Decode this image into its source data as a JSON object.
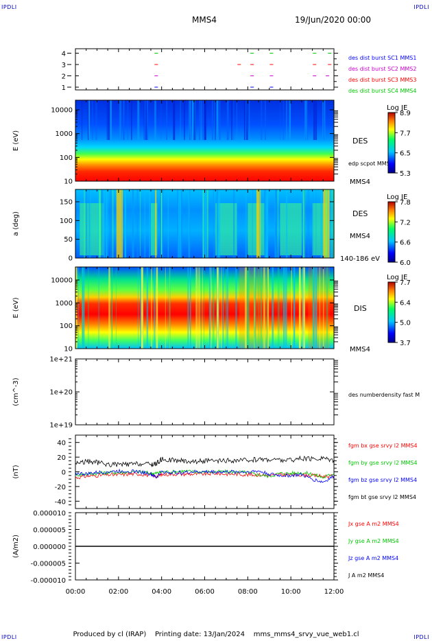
{
  "corners": {
    "top_left": "IPDLI",
    "top_right": "IPDLI",
    "bottom_left": "IPDLI",
    "bottom_right": "IPDLI"
  },
  "header": {
    "spacecraft": "MMS4",
    "datetime": "19/Jun/2020 00:00"
  },
  "footer": {
    "produced_by": "Produced by cl (IRAP)",
    "printing_date": "Printing date: 13/Jan/2024",
    "script": "mms_mms4_srvy_vue_web1.cl"
  },
  "colors": {
    "red": "#ff0000",
    "green": "#00c800",
    "blue": "#0000ff",
    "magenta": "#cc00cc",
    "black": "#000000"
  },
  "chart_data": [
    {
      "type": "scatter",
      "panel": "burst-availability",
      "y_ticks": [
        "1",
        "2",
        "3",
        "4"
      ],
      "legend": [
        {
          "name": "des dist burst SC1 MMS1",
          "color": "#0000ff"
        },
        {
          "name": "des dist burst SC2 MMS2",
          "color": "#cc00cc"
        },
        {
          "name": "des dist burst SC3 MMS3",
          "color": "#ff0000"
        },
        {
          "name": "des dist burst SC4 MMS4",
          "color": "#00c800"
        }
      ],
      "series": [
        {
          "name": "des dist burst SC1 MMS1",
          "y": 1,
          "x": [
            3.75,
            8.2,
            9.1
          ]
        },
        {
          "name": "des dist burst SC2 MMS2",
          "y": 2,
          "x": [
            3.75,
            8.2,
            9.1,
            11.1,
            11.7
          ]
        },
        {
          "name": "des dist burst SC3 MMS3",
          "y": 3,
          "x": [
            3.75,
            7.6,
            8.2,
            9.1,
            11.1,
            11.8
          ]
        },
        {
          "name": "des dist burst SC4 MMS4",
          "y": 4,
          "x": [
            3.75,
            8.2,
            9.1,
            11.1,
            11.8
          ]
        }
      ]
    },
    {
      "type": "heatmap",
      "panel": "des-energy",
      "ylabel": "E (eV)",
      "y_ticks": [
        "10",
        "100",
        "1000",
        "10000"
      ],
      "label": "DES",
      "label2": "edp scpot MMS4",
      "label3": "MMS4",
      "colorbar": {
        "title": "Log JE",
        "ticks": [
          "8.9",
          "7.7",
          "6.5",
          "5.3"
        ]
      }
    },
    {
      "type": "heatmap",
      "panel": "des-pitch-angle",
      "ylabel": "a (deg)",
      "y_ticks": [
        "0",
        "50",
        "100",
        "150"
      ],
      "label": "DES",
      "label2": "MMS4",
      "label3": "140-186 eV",
      "colorbar": {
        "title": "Log JE",
        "ticks": [
          "7.8",
          "7.2",
          "6.6",
          "6.0"
        ]
      }
    },
    {
      "type": "heatmap",
      "panel": "dis-energy",
      "ylabel": "E (eV)",
      "y_ticks": [
        "10",
        "100",
        "1000",
        "10000"
      ],
      "label": "DIS",
      "label2": "MMS4",
      "colorbar": {
        "title": "Log JE",
        "ticks": [
          "7.7",
          "6.4",
          "5.0",
          "3.7"
        ]
      }
    },
    {
      "type": "line",
      "panel": "density",
      "ylabel": "(cm^-3)",
      "y_ticks": [
        "1e+19",
        "1e+20",
        "1e+21"
      ],
      "legend": [
        {
          "name": "des numberdensity fast M",
          "color": "#000000"
        }
      ]
    },
    {
      "type": "line",
      "panel": "magnetic-field",
      "ylabel": "(nT)",
      "ylim": [
        -50,
        50
      ],
      "y_ticks": [
        "-40",
        "-20",
        "0",
        "20",
        "40"
      ],
      "legend": [
        {
          "name": "fgm bx gse srvy l2 MMS4",
          "color": "#ff0000"
        },
        {
          "name": "fgm by gse srvy l2 MMS4",
          "color": "#00c800"
        },
        {
          "name": "fgm bz gse srvy l2 MMS4",
          "color": "#0000ff"
        },
        {
          "name": "fgm bt gse srvy l2 MMS4",
          "color": "#000000"
        }
      ],
      "x": [
        0,
        0.5,
        1,
        1.5,
        2,
        2.5,
        3,
        3.5,
        3.75,
        4,
        4.5,
        5,
        5.5,
        6,
        6.5,
        7,
        7.5,
        8,
        8.5,
        9,
        9.5,
        10,
        10.5,
        11,
        11.5,
        12
      ],
      "series": [
        {
          "name": "fgm bx gse srvy l2 MMS4",
          "values": [
            -8,
            -6,
            -5,
            -4,
            -4,
            -3,
            -3,
            -5,
            -6,
            -4,
            -3,
            -3,
            -3,
            -3,
            -2,
            -3,
            -3,
            -4,
            -4,
            -5,
            -4,
            -4,
            -4,
            -5,
            -6,
            -6
          ]
        },
        {
          "name": "fgm by gse srvy l2 MMS4",
          "values": [
            -4,
            -3,
            -2,
            -1,
            -1,
            0,
            0,
            -2,
            -2,
            0,
            0,
            1,
            0,
            0,
            0,
            0,
            0,
            -1,
            -4,
            -6,
            -2,
            -2,
            -1,
            -3,
            -8,
            -2
          ]
        },
        {
          "name": "fgm bz gse srvy l2 MMS4",
          "values": [
            -2,
            -3,
            -1,
            0,
            1,
            1,
            0,
            -3,
            -8,
            0,
            -1,
            -1,
            0,
            0,
            0,
            0,
            0,
            0,
            1,
            -3,
            -5,
            -5,
            -4,
            -10,
            -14,
            -6
          ]
        },
        {
          "name": "fgm bt gse srvy l2 MMS4",
          "values": [
            12,
            14,
            13,
            10,
            10,
            10,
            11,
            10,
            11,
            17,
            16,
            15,
            14,
            15,
            14,
            15,
            15,
            16,
            17,
            17,
            16,
            16,
            18,
            17,
            19,
            16
          ]
        }
      ]
    },
    {
      "type": "line",
      "panel": "current-density",
      "ylabel": "(A/m2)",
      "ylim": [
        -1e-05,
        1e-05
      ],
      "y_ticks": [
        "0.000010",
        "0.000005",
        "0.000000",
        "-0.000005",
        "-0.000010"
      ],
      "legend": [
        {
          "name": "Jx gse A m2 MMS4",
          "color": "#ff0000"
        },
        {
          "name": "Jy gse A m2 MMS4",
          "color": "#00c800"
        },
        {
          "name": "Jz gse A m2 MMS4",
          "color": "#0000ff"
        },
        {
          "name": "J A m2 MMS4",
          "color": "#000000"
        }
      ],
      "x": [
        0,
        12
      ],
      "series": [
        {
          "name": "J A m2 MMS4",
          "values": [
            0,
            0
          ]
        }
      ]
    }
  ],
  "time_axis": {
    "ticks": [
      "00:00",
      "02:00",
      "04:00",
      "06:00",
      "08:00",
      "10:00",
      "12:00"
    ],
    "range_hours": [
      0,
      12
    ]
  }
}
